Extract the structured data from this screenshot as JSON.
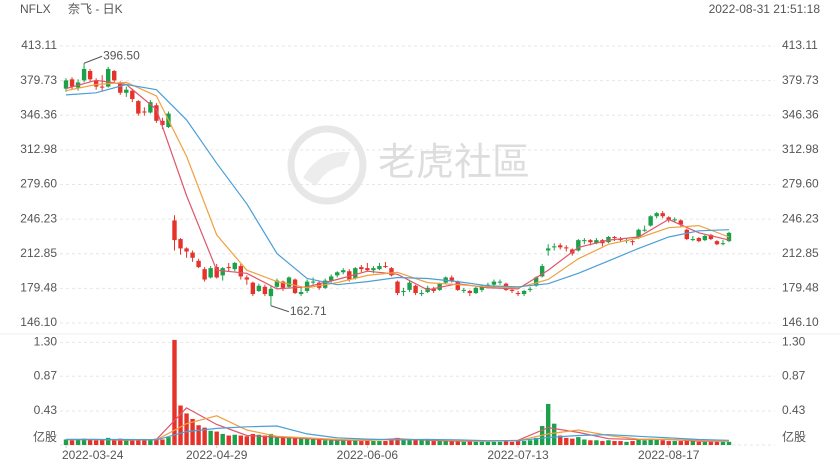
{
  "chart_data": {
    "type": "candlestick",
    "symbol": "NFLX",
    "title": "奈飞 - 日K",
    "timestamp": "2022-08-31 21:51:18",
    "watermark": "老虎社區",
    "up_color": "#1ba14a",
    "down_color": "#e5332a",
    "ylim": [
      139.35,
      422.75
    ],
    "yticks": [
      {
        "value": 146.1,
        "label": "146.10"
      },
      179.48,
      212.85,
      246.23,
      {
        "value": 279.6,
        "label": "279.60"
      },
      312.98,
      346.36,
      379.73,
      413.11
    ],
    "xlim": [
      0,
      110
    ],
    "xticks": [
      {
        "value": 0,
        "label": "2022-03-24"
      },
      {
        "value": 25,
        "label": "2022-04-29"
      },
      {
        "value": 50,
        "label": "2022-06-06"
      },
      {
        "value": 75,
        "label": "2022-07-13"
      },
      {
        "value": 100,
        "label": "2022-08-17"
      }
    ],
    "grid": true,
    "annotations": [
      "396.50",
      "162.71"
    ],
    "open": [
      372,
      381,
      373,
      380,
      389,
      380,
      374,
      374,
      389,
      378,
      368,
      370,
      360,
      350,
      349,
      356,
      341,
      335,
      245,
      227,
      218,
      214,
      206,
      198,
      190,
      200,
      192,
      200,
      198,
      201,
      190,
      185,
      177,
      181,
      172,
      181,
      186,
      181,
      188,
      174,
      177,
      186,
      185,
      180,
      187,
      192,
      195,
      196,
      189,
      200,
      199,
      197,
      198,
      201,
      199,
      186,
      176,
      178,
      182,
      174,
      176,
      179,
      178,
      185,
      190,
      186,
      177,
      177,
      175,
      178,
      182,
      183,
      185,
      184,
      178,
      175,
      174,
      178,
      182,
      191,
      216,
      219,
      221,
      219,
      217,
      216,
      225,
      226,
      223,
      226,
      224,
      229,
      227,
      226,
      225,
      228,
      236,
      240,
      249,
      252,
      248,
      245,
      245,
      236,
      227,
      228,
      226,
      231,
      225,
      223,
      225
    ],
    "high": [
      382,
      383,
      381,
      396.5,
      391,
      382,
      385,
      393,
      390,
      379,
      374,
      372,
      361,
      354,
      361,
      358,
      344,
      350,
      250,
      228,
      219,
      216,
      208,
      200,
      201,
      203,
      200,
      204,
      205,
      203,
      192,
      186,
      184,
      183,
      182,
      189,
      187,
      191,
      189,
      181,
      188,
      190,
      187,
      189,
      193,
      196,
      199,
      198,
      200,
      202,
      204,
      201,
      204,
      205,
      200,
      187,
      180,
      187,
      183,
      178,
      182,
      181,
      185,
      191,
      192,
      187,
      180,
      178,
      181,
      183,
      185,
      188,
      188,
      185,
      180,
      177,
      178,
      181,
      191,
      203,
      222,
      223,
      223,
      221,
      218,
      227,
      228,
      227,
      228,
      227,
      230,
      230,
      229,
      228,
      226,
      237,
      240,
      250,
      253,
      254,
      249,
      248,
      246,
      237,
      230,
      229,
      231,
      232,
      226,
      226,
      234
    ],
    "low": [
      369,
      371,
      370,
      378,
      379,
      371,
      370,
      373,
      378,
      366,
      364,
      359,
      346,
      346,
      348,
      339,
      333,
      334,
      216,
      212,
      209,
      205,
      199,
      186,
      189,
      189,
      187,
      196,
      196,
      188,
      183,
      172,
      176,
      172,
      162.71,
      180,
      177,
      180,
      174,
      172,
      175,
      183,
      178,
      179,
      185,
      190,
      193,
      186,
      188,
      195,
      196,
      194,
      197,
      199,
      191,
      173,
      172,
      176,
      173,
      172,
      175,
      175,
      177,
      184,
      185,
      177,
      175,
      172,
      174,
      176,
      180,
      182,
      183,
      177,
      175,
      172,
      172,
      176,
      181,
      190,
      211,
      216,
      217,
      215,
      211,
      215,
      222,
      221,
      222,
      220,
      223,
      225,
      224,
      223,
      221,
      227,
      234,
      239,
      247,
      247,
      243,
      243,
      239,
      226,
      225,
      224,
      225,
      226,
      221,
      221,
      224
    ],
    "close": [
      380,
      374,
      378,
      391,
      381,
      374,
      373,
      391,
      380,
      368,
      371,
      362,
      348,
      349,
      359,
      341,
      337,
      348,
      226,
      218,
      215,
      209,
      200,
      188,
      199,
      190,
      199,
      199,
      204,
      191,
      188,
      174,
      182,
      174,
      179,
      187,
      180,
      190,
      175,
      176,
      186,
      186,
      180,
      187,
      191,
      195,
      197,
      188,
      199,
      198,
      197,
      199,
      201,
      200,
      192,
      175,
      177,
      185,
      175,
      175,
      180,
      177,
      184,
      190,
      187,
      178,
      178,
      175,
      180,
      182,
      183,
      186,
      186,
      178,
      177,
      174,
      177,
      179,
      190,
      201,
      218,
      220,
      219,
      218,
      213,
      226,
      226,
      224,
      226,
      223,
      229,
      228,
      226,
      226,
      224,
      236,
      236,
      249,
      252,
      249,
      245,
      246,
      241,
      227,
      227,
      225,
      230,
      227,
      222,
      223,
      233
    ],
    "volume": [
      0.07,
      0.06,
      0.07,
      0.08,
      0.07,
      0.06,
      0.07,
      0.09,
      0.07,
      0.08,
      0.06,
      0.06,
      0.07,
      0.06,
      0.07,
      0.08,
      0.07,
      0.1,
      1.33,
      0.5,
      0.4,
      0.33,
      0.25,
      0.22,
      0.18,
      0.17,
      0.14,
      0.12,
      0.13,
      0.12,
      0.11,
      0.14,
      0.13,
      0.12,
      0.14,
      0.11,
      0.09,
      0.1,
      0.09,
      0.08,
      0.08,
      0.07,
      0.07,
      0.06,
      0.06,
      0.07,
      0.06,
      0.06,
      0.06,
      0.05,
      0.06,
      0.05,
      0.05,
      0.05,
      0.06,
      0.09,
      0.08,
      0.07,
      0.07,
      0.06,
      0.06,
      0.05,
      0.05,
      0.05,
      0.05,
      0.05,
      0.04,
      0.05,
      0.04,
      0.04,
      0.04,
      0.04,
      0.04,
      0.05,
      0.04,
      0.05,
      0.05,
      0.06,
      0.09,
      0.24,
      0.52,
      0.27,
      0.12,
      0.09,
      0.08,
      0.1,
      0.07,
      0.06,
      0.06,
      0.05,
      0.06,
      0.05,
      0.05,
      0.04,
      0.05,
      0.07,
      0.06,
      0.08,
      0.07,
      0.06,
      0.05,
      0.05,
      0.05,
      0.06,
      0.05,
      0.04,
      0.04,
      0.04,
      0.04,
      0.04,
      0.04
    ],
    "volume_ylim": [
      0,
      1.38
    ],
    "volume_yticks": [
      {
        "value": 0,
        "label": "亿股"
      },
      0.43,
      0.87,
      {
        "value": 1.3,
        "label": "1.30"
      }
    ],
    "series": [
      {
        "color": "#e0556a",
        "x": [
          0,
          5,
          10,
          15,
          20,
          25,
          30,
          35,
          40,
          45,
          50,
          55,
          60,
          65,
          70,
          75,
          80,
          85,
          90,
          95,
          100,
          105,
          110
        ],
        "values": [
          372,
          380,
          376,
          352,
          269,
          197,
          194,
          179,
          181,
          188,
          196,
          193,
          178,
          184,
          180,
          179,
          197,
          219,
          226,
          229,
          246,
          233,
          226
        ]
      },
      {
        "color": "#f0a040",
        "x": [
          0,
          5,
          10,
          15,
          20,
          25,
          30,
          35,
          40,
          45,
          50,
          55,
          60,
          65,
          70,
          75,
          80,
          85,
          90,
          95,
          100,
          105,
          110
        ],
        "values": [
          370,
          376,
          378,
          365,
          307,
          231,
          197,
          186,
          180,
          185,
          192,
          195,
          185,
          183,
          181,
          180,
          188,
          208,
          222,
          228,
          238,
          240,
          229
        ]
      },
      {
        "color": "#4a9fd8",
        "x": [
          0,
          5,
          10,
          15,
          20,
          25,
          30,
          35,
          40,
          45,
          50,
          55,
          60,
          65,
          70,
          75,
          80,
          85,
          90,
          95,
          100,
          105,
          110
        ],
        "values": [
          366,
          368,
          376,
          371,
          342,
          300,
          261,
          213,
          189,
          183,
          186,
          190,
          189,
          186,
          182,
          181,
          184,
          194,
          206,
          218,
          229,
          235,
          236
        ]
      }
    ],
    "volume_series": [
      {
        "color": "#e0556a",
        "x": [
          0,
          5,
          10,
          15,
          20,
          25,
          30,
          35,
          40,
          45,
          50,
          55,
          60,
          65,
          70,
          75,
          80,
          85,
          90,
          95,
          100,
          105,
          110
        ],
        "values": [
          0.07,
          0.07,
          0.06,
          0.07,
          0.47,
          0.26,
          0.12,
          0.1,
          0.08,
          0.06,
          0.06,
          0.08,
          0.06,
          0.05,
          0.05,
          0.06,
          0.22,
          0.16,
          0.08,
          0.07,
          0.07,
          0.05,
          0.05
        ]
      },
      {
        "color": "#f0a040",
        "x": [
          0,
          5,
          10,
          15,
          20,
          25,
          30,
          35,
          40,
          45,
          50,
          55,
          60,
          65,
          70,
          75,
          80,
          85,
          90,
          95,
          100,
          105,
          110
        ],
        "values": [
          0.07,
          0.07,
          0.065,
          0.065,
          0.27,
          0.37,
          0.19,
          0.11,
          0.09,
          0.07,
          0.06,
          0.07,
          0.07,
          0.055,
          0.05,
          0.055,
          0.14,
          0.19,
          0.12,
          0.075,
          0.07,
          0.06,
          0.05
        ]
      },
      {
        "color": "#4a9fd8",
        "x": [
          0,
          5,
          10,
          15,
          20,
          25,
          30,
          35,
          40,
          45,
          50,
          55,
          60,
          65,
          70,
          75,
          80,
          85,
          90,
          95,
          100,
          105,
          110
        ],
        "values": [
          0.07,
          0.07,
          0.07,
          0.065,
          0.17,
          0.21,
          0.23,
          0.24,
          0.14,
          0.09,
          0.075,
          0.065,
          0.07,
          0.065,
          0.055,
          0.055,
          0.095,
          0.12,
          0.13,
          0.11,
          0.09,
          0.07,
          0.06
        ]
      }
    ]
  }
}
